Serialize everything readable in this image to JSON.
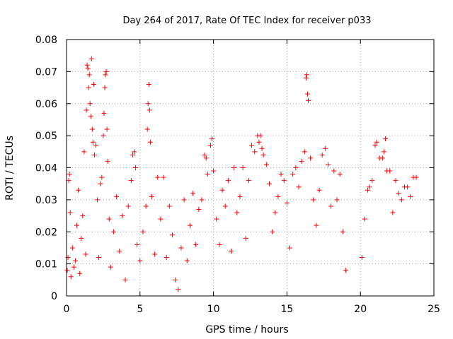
{
  "chart_data": {
    "type": "scatter",
    "title": "Day 264 of 2017, Rate Of TEC Index for receiver p033",
    "xlabel": "GPS time / hours",
    "ylabel": "ROTI / TECUs",
    "xlim": [
      0,
      25
    ],
    "ylim": [
      0,
      0.08
    ],
    "x_ticks": [
      0,
      5,
      10,
      15,
      20,
      25
    ],
    "x_tick_labels": [
      "0",
      "5",
      "10",
      "15",
      "20",
      "25"
    ],
    "y_ticks": [
      0,
      0.01,
      0.02,
      0.03,
      0.04,
      0.05,
      0.06,
      0.07,
      0.08
    ],
    "y_tick_labels": [
      "0",
      "0.01",
      "0.02",
      "0.03",
      "0.04",
      "0.05",
      "0.06",
      "0.07",
      "0.08"
    ],
    "grid": true,
    "legend": "none",
    "marker": "plus",
    "series": [
      {
        "color": "#ff0000",
        "points": [
          [
            0.05,
            0.008
          ],
          [
            0.1,
            0.012
          ],
          [
            0.15,
            0.036
          ],
          [
            0.2,
            0.038
          ],
          [
            0.25,
            0.026
          ],
          [
            0.3,
            0.006
          ],
          [
            0.4,
            0.015
          ],
          [
            0.5,
            0.009
          ],
          [
            0.6,
            0.011
          ],
          [
            0.7,
            0.022
          ],
          [
            0.8,
            0.033
          ],
          [
            0.9,
            0.007
          ],
          [
            1.0,
            0.018
          ],
          [
            1.1,
            0.025
          ],
          [
            1.2,
            0.045
          ],
          [
            1.3,
            0.013
          ],
          [
            1.35,
            0.058
          ],
          [
            1.4,
            0.072
          ],
          [
            1.45,
            0.071
          ],
          [
            1.5,
            0.065
          ],
          [
            1.55,
            0.069
          ],
          [
            1.6,
            0.06
          ],
          [
            1.65,
            0.056
          ],
          [
            1.7,
            0.074
          ],
          [
            1.75,
            0.052
          ],
          [
            1.8,
            0.048
          ],
          [
            1.85,
            0.066
          ],
          [
            1.9,
            0.044
          ],
          [
            2.0,
            0.047
          ],
          [
            2.1,
            0.03
          ],
          [
            2.2,
            0.012
          ],
          [
            2.3,
            0.035
          ],
          [
            2.4,
            0.037
          ],
          [
            2.5,
            0.05
          ],
          [
            2.55,
            0.057
          ],
          [
            2.6,
            0.065
          ],
          [
            2.65,
            0.069
          ],
          [
            2.7,
            0.07
          ],
          [
            2.75,
            0.052
          ],
          [
            2.8,
            0.042
          ],
          [
            2.9,
            0.024
          ],
          [
            3.0,
            0.009
          ],
          [
            3.2,
            0.02
          ],
          [
            3.4,
            0.031
          ],
          [
            3.6,
            0.014
          ],
          [
            3.8,
            0.025
          ],
          [
            4.0,
            0.005
          ],
          [
            4.2,
            0.028
          ],
          [
            4.4,
            0.036
          ],
          [
            4.5,
            0.044
          ],
          [
            4.6,
            0.045
          ],
          [
            4.7,
            0.04
          ],
          [
            4.8,
            0.016
          ],
          [
            5.0,
            0.011
          ],
          [
            5.2,
            0.02
          ],
          [
            5.4,
            0.028
          ],
          [
            5.5,
            0.052
          ],
          [
            5.55,
            0.06
          ],
          [
            5.6,
            0.066
          ],
          [
            5.65,
            0.058
          ],
          [
            5.7,
            0.048
          ],
          [
            5.8,
            0.031
          ],
          [
            6.0,
            0.013
          ],
          [
            6.2,
            0.037
          ],
          [
            6.4,
            0.024
          ],
          [
            6.6,
            0.037
          ],
          [
            6.8,
            0.012
          ],
          [
            7.0,
            0.028
          ],
          [
            7.2,
            0.019
          ],
          [
            7.4,
            0.005
          ],
          [
            7.6,
            0.002
          ],
          [
            7.8,
            0.015
          ],
          [
            8.0,
            0.03
          ],
          [
            8.2,
            0.011
          ],
          [
            8.4,
            0.022
          ],
          [
            8.6,
            0.032
          ],
          [
            8.8,
            0.016
          ],
          [
            9.0,
            0.027
          ],
          [
            9.2,
            0.03
          ],
          [
            9.4,
            0.044
          ],
          [
            9.5,
            0.043
          ],
          [
            9.6,
            0.038
          ],
          [
            9.8,
            0.047
          ],
          [
            9.9,
            0.049
          ],
          [
            10.0,
            0.039
          ],
          [
            10.2,
            0.024
          ],
          [
            10.4,
            0.016
          ],
          [
            10.6,
            0.033
          ],
          [
            10.8,
            0.028
          ],
          [
            11.0,
            0.036
          ],
          [
            11.2,
            0.014
          ],
          [
            11.4,
            0.04
          ],
          [
            11.6,
            0.026
          ],
          [
            11.8,
            0.031
          ],
          [
            12.0,
            0.04
          ],
          [
            12.2,
            0.018
          ],
          [
            12.4,
            0.036
          ],
          [
            12.6,
            0.047
          ],
          [
            12.8,
            0.045
          ],
          [
            13.0,
            0.05
          ],
          [
            13.1,
            0.048
          ],
          [
            13.2,
            0.05
          ],
          [
            13.3,
            0.046
          ],
          [
            13.4,
            0.044
          ],
          [
            13.6,
            0.041
          ],
          [
            13.8,
            0.035
          ],
          [
            14.0,
            0.02
          ],
          [
            14.2,
            0.026
          ],
          [
            14.4,
            0.031
          ],
          [
            14.6,
            0.038
          ],
          [
            14.8,
            0.036
          ],
          [
            15.0,
            0.029
          ],
          [
            15.2,
            0.015
          ],
          [
            15.4,
            0.038
          ],
          [
            15.6,
            0.04
          ],
          [
            15.8,
            0.034
          ],
          [
            16.0,
            0.042
          ],
          [
            16.2,
            0.045
          ],
          [
            16.3,
            0.068
          ],
          [
            16.35,
            0.069
          ],
          [
            16.4,
            0.063
          ],
          [
            16.45,
            0.061
          ],
          [
            16.6,
            0.043
          ],
          [
            16.8,
            0.03
          ],
          [
            17.0,
            0.022
          ],
          [
            17.2,
            0.033
          ],
          [
            17.4,
            0.044
          ],
          [
            17.6,
            0.046
          ],
          [
            17.8,
            0.041
          ],
          [
            18.0,
            0.028
          ],
          [
            18.2,
            0.039
          ],
          [
            18.4,
            0.03
          ],
          [
            18.6,
            0.038
          ],
          [
            18.8,
            0.02
          ],
          [
            19.0,
            0.008
          ],
          [
            20.1,
            0.012
          ],
          [
            20.3,
            0.024
          ],
          [
            20.5,
            0.033
          ],
          [
            20.6,
            0.034
          ],
          [
            20.8,
            0.036
          ],
          [
            21.0,
            0.047
          ],
          [
            21.1,
            0.048
          ],
          [
            21.3,
            0.043
          ],
          [
            21.5,
            0.043
          ],
          [
            21.6,
            0.045
          ],
          [
            21.7,
            0.049
          ],
          [
            21.8,
            0.039
          ],
          [
            22.0,
            0.039
          ],
          [
            22.2,
            0.026
          ],
          [
            22.4,
            0.036
          ],
          [
            22.6,
            0.032
          ],
          [
            22.8,
            0.03
          ],
          [
            23.0,
            0.034
          ],
          [
            23.2,
            0.034
          ],
          [
            23.4,
            0.031
          ],
          [
            23.6,
            0.037
          ],
          [
            23.8,
            0.037
          ]
        ]
      }
    ]
  }
}
